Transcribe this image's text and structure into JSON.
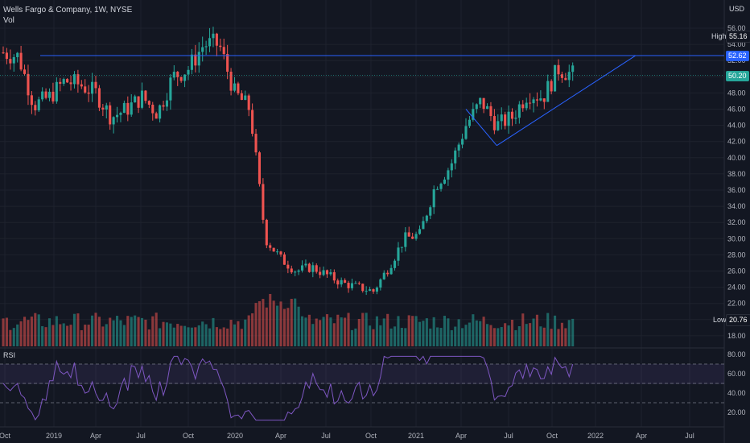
{
  "header": {
    "title": "Wells Fargo & Company, 1W, NYSE",
    "vol_label": "Vol"
  },
  "axis": {
    "currency": "USD"
  },
  "markers": {
    "high_label": "High",
    "high_value": "55.16",
    "low_label": "Low",
    "low_value": "20.76",
    "resistance_value": "52.62",
    "last_value": "50.20"
  },
  "indicator": {
    "rsi_label": "RSI"
  },
  "colors": {
    "up": "#26a69a",
    "down": "#ef5350",
    "trend": "#2962ff",
    "rsi": "#7e57c2",
    "bg": "#131722"
  },
  "chart_data": {
    "type": "candlestick",
    "symbol": "Wells Fargo & Company, 1W, NYSE",
    "x_ticks": [
      "Oct",
      "2019",
      "Apr",
      "Jul",
      "Oct",
      "2020",
      "Apr",
      "Jul",
      "Oct",
      "2021",
      "Apr",
      "Jul",
      "Oct",
      "2022",
      "Apr",
      "Jul"
    ],
    "y_ticks": [
      "56.00",
      "54.00",
      "52.00",
      "50.00",
      "48.00",
      "46.00",
      "44.00",
      "42.00",
      "40.00",
      "38.00",
      "36.00",
      "34.00",
      "32.00",
      "30.00",
      "28.00",
      "26.00",
      "24.00",
      "22.00",
      "20.00",
      "18.00"
    ],
    "ylim": [
      17,
      57
    ],
    "rsi_ticks": [
      "80.00",
      "60.00",
      "40.00",
      "20.00"
    ],
    "rsi_bands": [
      70,
      50,
      30
    ],
    "key_prices": {
      "high": 55.16,
      "low": 20.76,
      "resistance": 52.62,
      "last": 50.2
    },
    "trendline_from": [
      "2021-06",
      41.5
    ],
    "trendline_to": [
      "2022-03",
      52.62
    ],
    "close_path": [
      [
        "2018-10",
        53.0
      ],
      [
        "2018-11",
        52.5
      ],
      [
        "2018-12",
        46.5
      ],
      [
        "2019-01",
        47.5
      ],
      [
        "2019-02",
        49.5
      ],
      [
        "2019-03",
        49.0
      ],
      [
        "2019-04",
        48.0
      ],
      [
        "2019-05",
        45.0
      ],
      [
        "2019-06",
        46.0
      ],
      [
        "2019-07",
        47.5
      ],
      [
        "2019-08",
        45.5
      ],
      [
        "2019-09",
        50.0
      ],
      [
        "2019-10",
        51.0
      ],
      [
        "2019-11",
        54.0
      ],
      [
        "2019-12",
        54.0
      ],
      [
        "2020-01",
        48.0
      ],
      [
        "2020-02",
        46.0
      ],
      [
        "2020-03",
        30.0
      ],
      [
        "2020-04",
        27.5
      ],
      [
        "2020-05",
        26.0
      ],
      [
        "2020-06",
        26.5
      ],
      [
        "2020-07",
        25.5
      ],
      [
        "2020-08",
        24.5
      ],
      [
        "2020-09",
        24.0
      ],
      [
        "2020-10",
        23.5
      ],
      [
        "2020-11",
        26.5
      ],
      [
        "2020-12",
        30.0
      ],
      [
        "2021-01",
        30.5
      ],
      [
        "2021-02",
        36.5
      ],
      [
        "2021-03",
        39.0
      ],
      [
        "2021-04",
        44.0
      ],
      [
        "2021-05",
        47.0
      ],
      [
        "2021-06",
        44.0
      ],
      [
        "2021-07",
        45.0
      ],
      [
        "2021-08",
        48.0
      ],
      [
        "2021-09",
        47.5
      ],
      [
        "2021-10",
        51.0
      ],
      [
        "2021-11",
        50.2
      ]
    ]
  }
}
